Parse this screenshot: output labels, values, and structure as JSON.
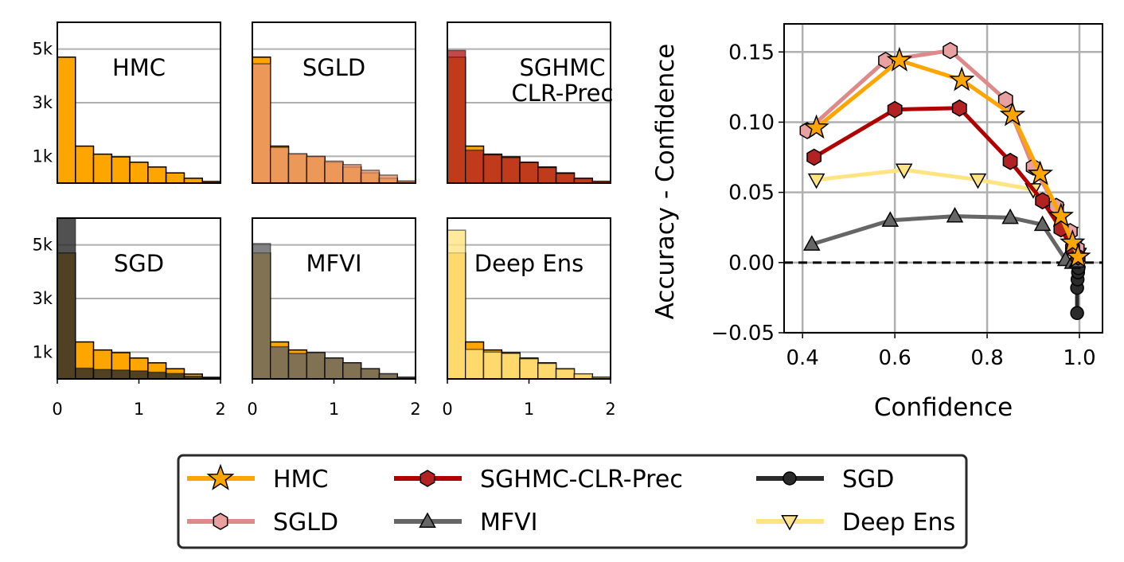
{
  "colors": {
    "HMC": "#FFA500",
    "SGLD": "#E8956B",
    "SGHMC-CLR-Prec": "#B22222",
    "SGD": "#2B2B2B",
    "MFVI": "#666666",
    "Deep Ens": "#FFE484",
    "grid": "#B0B0B0"
  },
  "chart_data": [
    {
      "type": "bar",
      "subtype": "overlaid histogram grid",
      "xlim": [
        0,
        2
      ],
      "ylim": [
        0,
        6000
      ],
      "x_ticks": [
        "0",
        "1",
        "2"
      ],
      "y_ticks": [
        "5k",
        "3k",
        "1k"
      ],
      "y_tick_values": [
        5000,
        3000,
        1000
      ],
      "bin_edges": [
        0,
        0.222,
        0.444,
        0.667,
        0.889,
        1.111,
        1.333,
        1.556,
        1.778,
        2.0
      ],
      "reference_series": "HMC",
      "panels": [
        {
          "title_lines": [
            "HMC"
          ],
          "method": "HMC",
          "hmc_values": [
            4700,
            1380,
            1080,
            980,
            780,
            600,
            380,
            180,
            60
          ],
          "values": [
            4700,
            1380,
            1080,
            980,
            780,
            600,
            380,
            180,
            60
          ]
        },
        {
          "title_lines": [
            "SGLD"
          ],
          "method": "SGLD",
          "hmc_values": [
            4700,
            1380,
            1080,
            980,
            780,
            600,
            380,
            180,
            60
          ],
          "values": [
            4450,
            1330,
            1100,
            1000,
            820,
            690,
            480,
            300,
            80
          ]
        },
        {
          "title_lines": [
            "SGHMC",
            "CLR-Prec"
          ],
          "method": "SGHMC-CLR-Prec",
          "hmc_values": [
            4700,
            1380,
            1080,
            980,
            780,
            600,
            380,
            180,
            60
          ],
          "values": [
            4950,
            1230,
            1050,
            950,
            770,
            580,
            350,
            170,
            70
          ]
        },
        {
          "title_lines": [
            "SGD"
          ],
          "method": "SGD",
          "hmc_values": [
            4700,
            1380,
            1080,
            980,
            780,
            600,
            380,
            180,
            60
          ],
          "values": [
            6000,
            400,
            350,
            330,
            300,
            250,
            200,
            100,
            50
          ]
        },
        {
          "title_lines": [
            "MFVI"
          ],
          "method": "MFVI",
          "hmc_values": [
            4700,
            1380,
            1080,
            980,
            780,
            600,
            380,
            180,
            60
          ],
          "values": [
            5050,
            1200,
            950,
            980,
            780,
            600,
            380,
            200,
            60
          ]
        },
        {
          "title_lines": [
            "Deep Ens"
          ],
          "method": "Deep Ens",
          "hmc_values": [
            4700,
            1380,
            1080,
            980,
            780,
            600,
            380,
            180,
            60
          ],
          "values": [
            5550,
            1100,
            1000,
            950,
            750,
            580,
            370,
            190,
            60
          ]
        }
      ]
    },
    {
      "type": "line",
      "xlabel": "Confidence",
      "ylabel": "Accuracy - Confidence",
      "xlim": [
        0.36,
        1.05
      ],
      "ylim": [
        -0.05,
        0.17
      ],
      "x_ticks": [
        0.4,
        0.6,
        0.8,
        1.0
      ],
      "x_tick_labels": [
        "0.4",
        "0.6",
        "0.8",
        "1.0"
      ],
      "y_ticks": [
        -0.05,
        0.0,
        0.05,
        0.1,
        0.15
      ],
      "y_tick_labels": [
        "−0.05",
        "0.00",
        "0.05",
        "0.10",
        "0.15"
      ],
      "reference_line_y": 0,
      "series": [
        {
          "name": "SGD",
          "marker": "circle",
          "x": [
            0.995,
            0.995,
            0.996,
            0.997,
            0.998
          ],
          "y": [
            -0.036,
            -0.018,
            -0.012,
            -0.007,
            -0.004
          ]
        },
        {
          "name": "MFVI",
          "marker": "triangle-up",
          "x": [
            0.42,
            0.59,
            0.73,
            0.85,
            0.92,
            0.97,
            0.985,
            0.995
          ],
          "y": [
            0.013,
            0.03,
            0.033,
            0.032,
            0.027,
            0.002,
            0.0,
            0.001
          ]
        },
        {
          "name": "Deep Ens",
          "marker": "triangle-down",
          "x": [
            0.43,
            0.62,
            0.78,
            0.9,
            0.95,
            0.98,
            0.99,
            0.998
          ],
          "y": [
            0.059,
            0.066,
            0.059,
            0.052,
            0.037,
            0.021,
            0.012,
            0.006
          ]
        },
        {
          "name": "SGLD",
          "marker": "hexagon",
          "x": [
            0.41,
            0.58,
            0.72,
            0.84,
            0.9,
            0.95,
            0.98,
            0.995
          ],
          "y": [
            0.094,
            0.144,
            0.151,
            0.116,
            0.068,
            0.04,
            0.022,
            0.01
          ]
        },
        {
          "name": "SGHMC-CLR-Prec",
          "marker": "hexagon",
          "x": [
            0.425,
            0.6,
            0.74,
            0.85,
            0.92,
            0.96,
            0.985,
            0.997
          ],
          "y": [
            0.075,
            0.109,
            0.11,
            0.072,
            0.044,
            0.024,
            0.01,
            0.004
          ]
        },
        {
          "name": "HMC",
          "marker": "star",
          "x": [
            0.43,
            0.61,
            0.745,
            0.855,
            0.915,
            0.96,
            0.985,
            0.997
          ],
          "y": [
            0.096,
            0.144,
            0.13,
            0.105,
            0.063,
            0.033,
            0.014,
            0.004
          ]
        }
      ],
      "legend": {
        "position": "bottom-center",
        "columns": 3,
        "entries": [
          "HMC",
          "SGLD",
          "SGHMC-CLR-Prec",
          "MFVI",
          "SGD",
          "Deep Ens"
        ]
      }
    }
  ]
}
